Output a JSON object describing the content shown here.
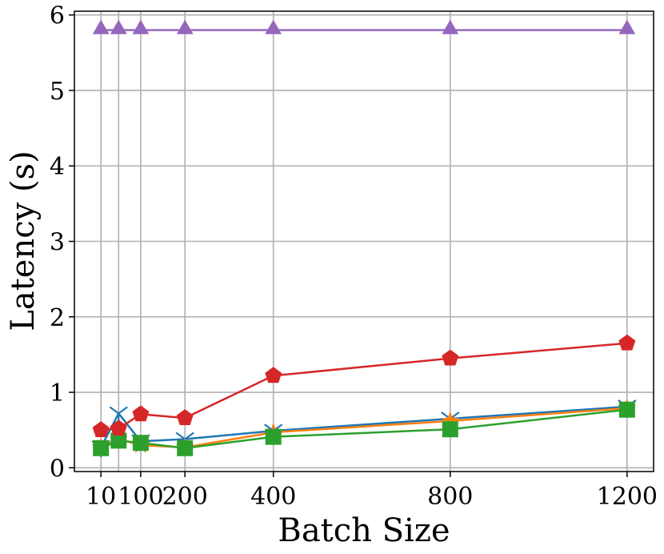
{
  "chart_data": {
    "type": "line",
    "title": "",
    "xlabel": "Batch Size",
    "ylabel": "Latency (s)",
    "x": [
      10,
      50,
      100,
      200,
      400,
      800,
      1200
    ],
    "xticks": [
      10,
      100,
      200,
      400,
      800,
      1200
    ],
    "xtick_labels": [
      "10",
      "100",
      "200",
      "400",
      "800",
      "1200"
    ],
    "yticks": [
      0,
      1,
      2,
      3,
      4,
      5,
      6
    ],
    "ytick_labels": [
      "0",
      "1",
      "2",
      "3",
      "4",
      "5",
      "6"
    ],
    "xlim": [
      -50,
      1260
    ],
    "ylim": [
      -0.05,
      6.05
    ],
    "grid": true,
    "series": [
      {
        "name": "series-blue",
        "color": "#1f77b4",
        "marker": "tri_down",
        "values": [
          0.27,
          0.72,
          0.35,
          0.38,
          0.49,
          0.65,
          0.81
        ]
      },
      {
        "name": "series-orange",
        "color": "#ff7f0e",
        "marker": "star",
        "values": [
          0.27,
          0.38,
          0.3,
          0.27,
          0.47,
          0.62,
          0.79
        ]
      },
      {
        "name": "series-green",
        "color": "#2ca02c",
        "marker": "square",
        "values": [
          0.26,
          0.36,
          0.33,
          0.26,
          0.41,
          0.51,
          0.77
        ]
      },
      {
        "name": "series-red",
        "color": "#d62728",
        "marker": "pentagon",
        "values": [
          0.5,
          0.52,
          0.71,
          0.66,
          1.22,
          1.45,
          1.65
        ]
      },
      {
        "name": "series-purple",
        "color": "#9467bd",
        "marker": "triangle",
        "values": [
          5.8,
          5.8,
          5.8,
          5.8,
          5.8,
          5.8,
          5.8
        ]
      }
    ]
  }
}
